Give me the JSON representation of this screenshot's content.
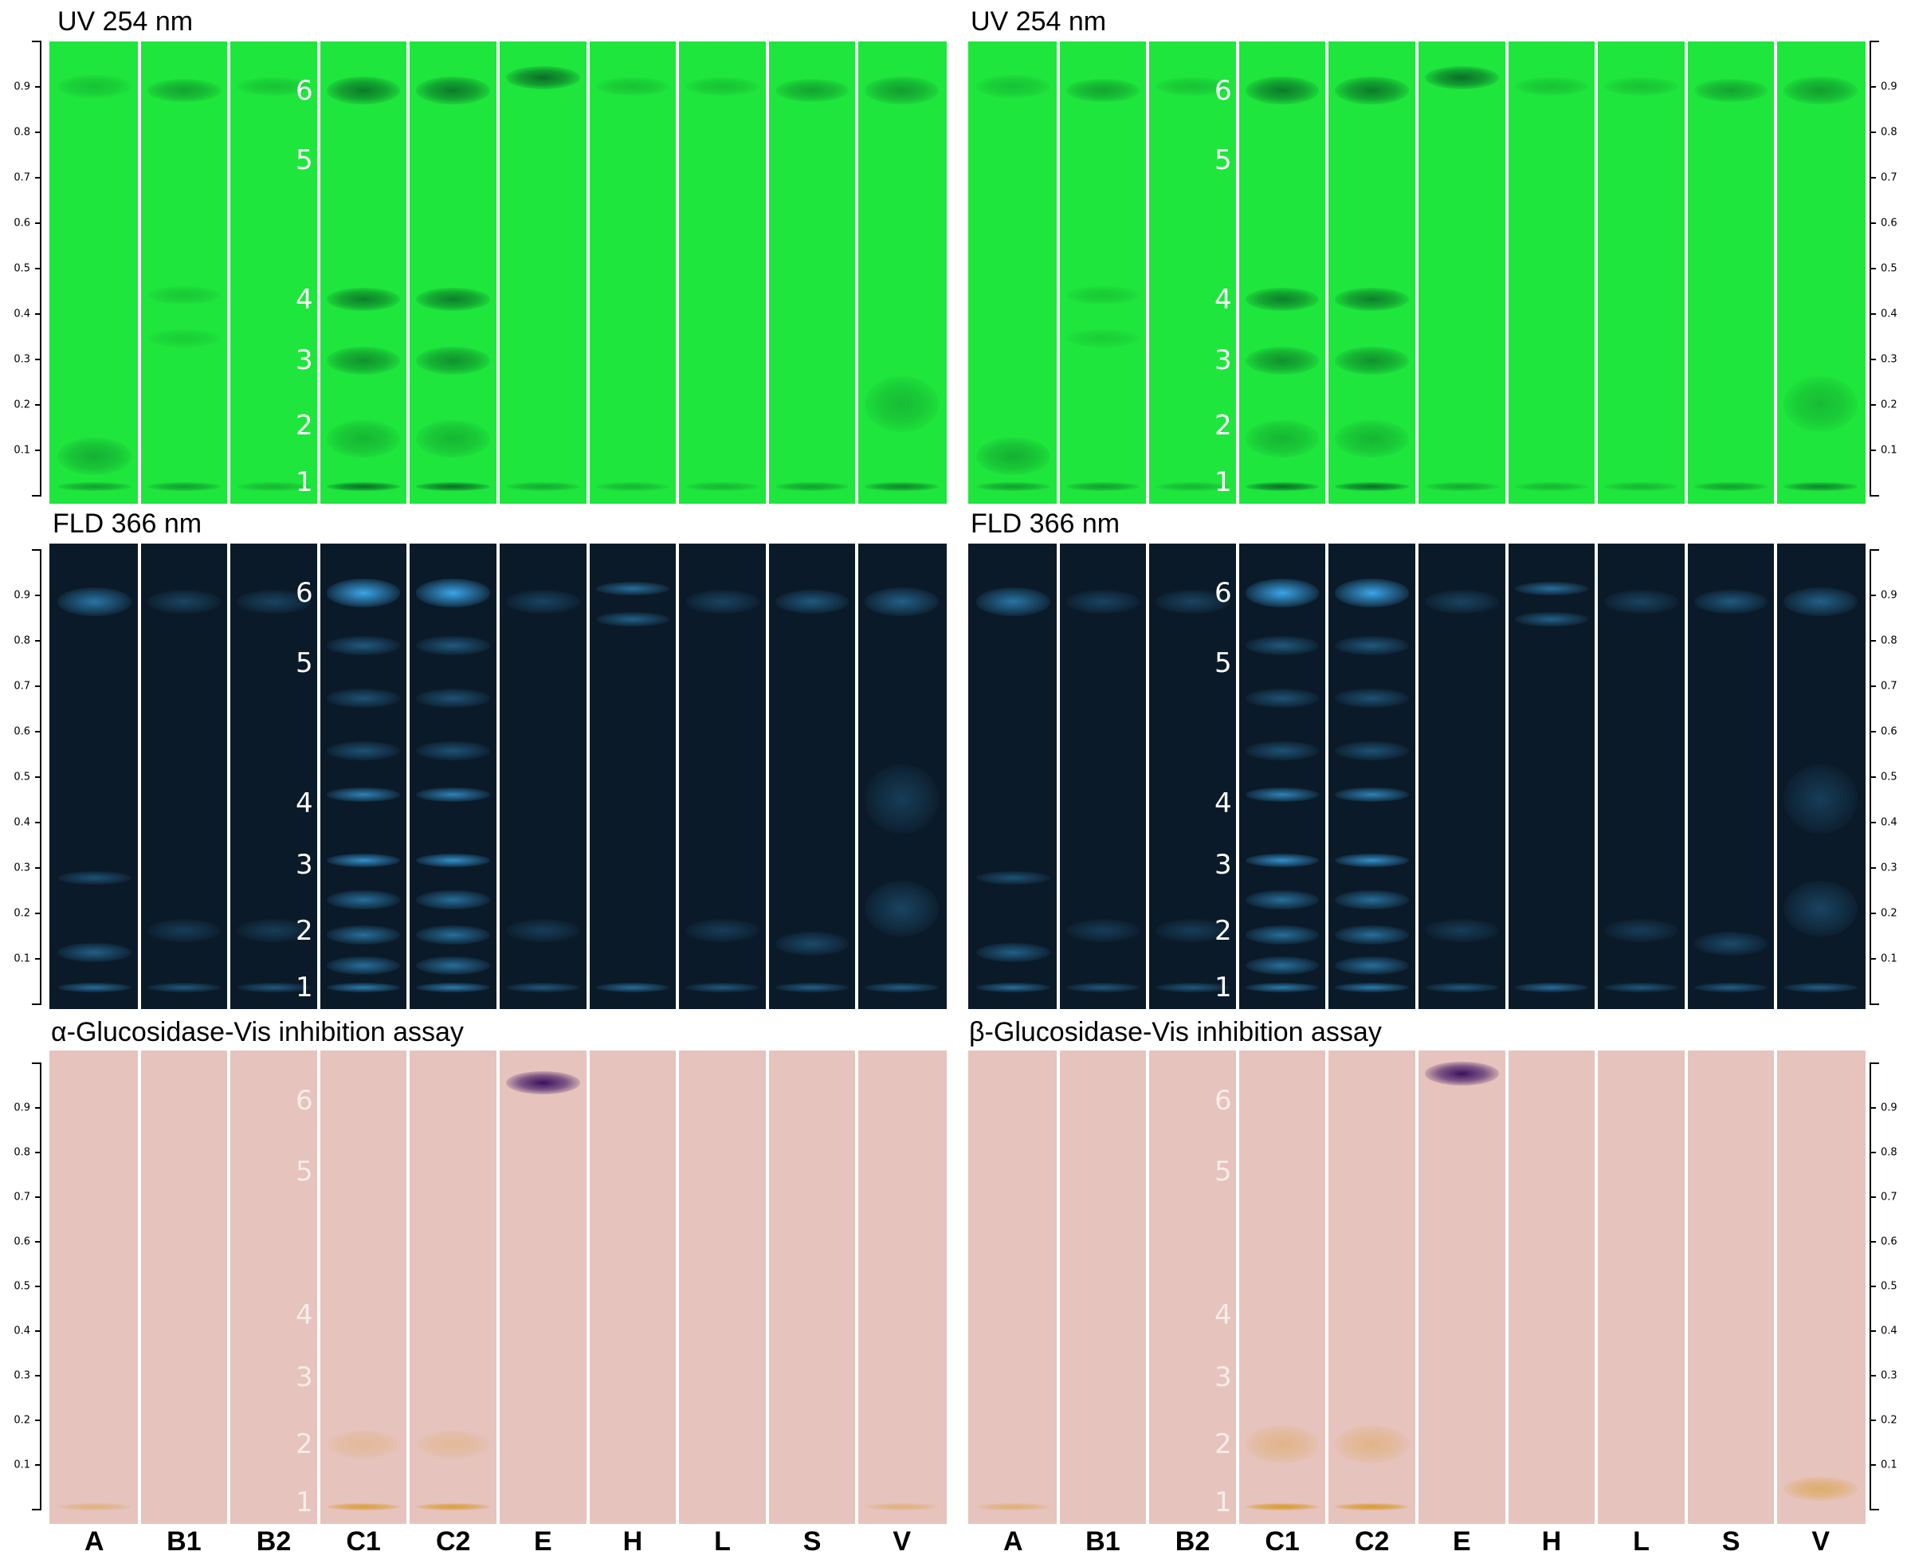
{
  "panels": {
    "uv_left": {
      "title": "UV 254 nm"
    },
    "uv_right": {
      "title": "UV 254 nm"
    },
    "fld_left": {
      "title": "FLD 366 nm"
    },
    "fld_right": {
      "title": "FLD 366 nm"
    },
    "vis_left": {
      "title": "α-Glucosidase-Vis inhibition assay"
    },
    "vis_right": {
      "title": "β-Glucosidase-Vis inhibition assay"
    }
  },
  "rf_scale": {
    "ticks": [
      0.1,
      0.2,
      0.3,
      0.4,
      0.5,
      0.6,
      0.7,
      0.8,
      0.9
    ],
    "labels": [
      "0.1",
      "0.2",
      "0.3",
      "0.4",
      "0.5",
      "0.6",
      "0.7",
      "0.8",
      "0.9"
    ]
  },
  "zones": [
    {
      "label": "1",
      "rf": 0.02
    },
    {
      "label": "2",
      "rf": 0.15
    },
    {
      "label": "3",
      "rf": 0.3
    },
    {
      "label": "4",
      "rf": 0.44
    },
    {
      "label": "5",
      "rf": 0.76
    },
    {
      "label": "6",
      "rf": 0.92
    }
  ],
  "tracks": [
    "A",
    "B1",
    "B2",
    "C1",
    "C2",
    "E",
    "H",
    "L",
    "S",
    "V"
  ],
  "colors": {
    "uv_plate": "#1ee63c",
    "uv_band": "#0a6e28",
    "fld_plate": "#0b1a28",
    "fld_band": "#3aa6e8",
    "vis_plate": "#e6c3bd",
    "vis_band": "#3a1060",
    "vis_yellow": "#d89a2a"
  }
}
